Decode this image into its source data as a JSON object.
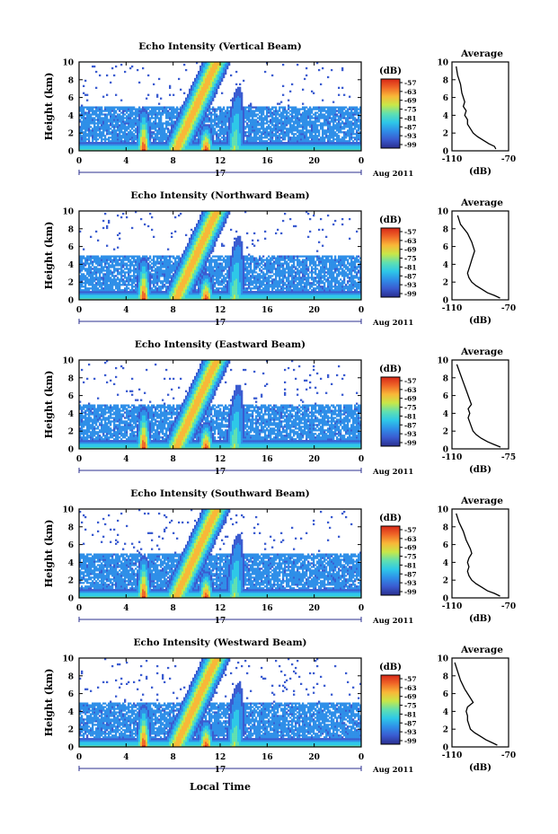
{
  "figure": {
    "xlabel": "Local Time",
    "date_label": "Aug 2011",
    "day_label": "17",
    "time_ticks": [
      "0",
      "4",
      "8",
      "12",
      "16",
      "20",
      "0"
    ],
    "height_ticks": [
      "0",
      "2",
      "4",
      "6",
      "8",
      "10"
    ],
    "ylabel": "Height (km)",
    "colorbar_unit": "(dB)",
    "colorbar_ticks": [
      "-57",
      "-63",
      "-69",
      "-75",
      "-81",
      "-87",
      "-93",
      "-99"
    ],
    "avg_title": "Average",
    "avg_xlabel": "(dB)"
  },
  "chart_data": [
    {
      "type": "heatmap",
      "title": "Echo Intensity (Vertical Beam)",
      "xlabel": "Local Time",
      "ylabel": "Height (km)",
      "xlim": [
        0,
        24
      ],
      "ylim": [
        0,
        10
      ],
      "zlim": [
        -99,
        -57
      ],
      "x_ticks": [
        0,
        4,
        8,
        12,
        16,
        20,
        24
      ],
      "y_ticks": [
        0,
        2,
        4,
        6,
        8,
        10
      ],
      "avg_profile": {
        "xlim": [
          -110,
          -70
        ],
        "x_ticks": [
          "-110",
          "-70"
        ],
        "x": [
          -79,
          -80,
          -84,
          -88,
          -92,
          -95,
          -97,
          -99,
          -99,
          -101,
          -100,
          -102,
          -101,
          -103,
          -104,
          -106,
          -107
        ],
        "y": [
          0.2,
          0.5,
          0.8,
          1.2,
          1.6,
          2.0,
          2.5,
          3.0,
          3.5,
          4.0,
          4.5,
          5.0,
          5.5,
          6.5,
          7.5,
          8.5,
          9.5
        ]
      }
    },
    {
      "type": "heatmap",
      "title": "Echo Intensity (Northward Beam)",
      "xlabel": "Local Time",
      "ylabel": "Height (km)",
      "xlim": [
        0,
        24
      ],
      "ylim": [
        0,
        10
      ],
      "zlim": [
        -99,
        -57
      ],
      "x_ticks": [
        0,
        4,
        8,
        12,
        16,
        20,
        24
      ],
      "y_ticks": [
        0,
        2,
        4,
        6,
        8,
        10
      ],
      "avg_profile": {
        "xlim": [
          -110,
          -70
        ],
        "x_ticks": [
          "-110",
          "-70"
        ],
        "x": [
          -76,
          -80,
          -85,
          -89,
          -93,
          -96,
          -98,
          -99,
          -98,
          -97,
          -96,
          -95,
          -94,
          -96,
          -99,
          -104,
          -106
        ],
        "y": [
          0.2,
          0.5,
          0.8,
          1.2,
          1.6,
          2.0,
          2.5,
          3.0,
          3.5,
          4.0,
          4.5,
          5.0,
          5.5,
          6.5,
          7.5,
          8.5,
          9.5
        ]
      }
    },
    {
      "type": "heatmap",
      "title": "Echo Intensity (Eastward Beam)",
      "xlabel": "Local Time",
      "ylabel": "Height (km)",
      "xlim": [
        0,
        24
      ],
      "ylim": [
        0,
        10
      ],
      "zlim": [
        -99,
        -57
      ],
      "x_ticks": [
        0,
        4,
        8,
        12,
        16,
        20,
        24
      ],
      "y_ticks": [
        0,
        2,
        4,
        6,
        8,
        10
      ],
      "avg_profile": {
        "xlim": [
          -110,
          -75
        ],
        "x_ticks": [
          "-110",
          "-75"
        ],
        "x": [
          -80,
          -84,
          -88,
          -92,
          -95,
          -97,
          -98,
          -99,
          -100,
          -99,
          -100,
          -98,
          -99,
          -101,
          -103,
          -105,
          -107
        ],
        "y": [
          0.2,
          0.5,
          0.8,
          1.2,
          1.6,
          2.0,
          2.5,
          3.0,
          3.5,
          4.0,
          4.5,
          5.0,
          5.5,
          6.5,
          7.5,
          8.5,
          9.5
        ]
      }
    },
    {
      "type": "heatmap",
      "title": "Echo Intensity (Southward Beam)",
      "xlabel": "Local Time",
      "ylabel": "Height (km)",
      "xlim": [
        0,
        24
      ],
      "ylim": [
        0,
        10
      ],
      "zlim": [
        -99,
        -57
      ],
      "x_ticks": [
        0,
        4,
        8,
        12,
        16,
        20,
        24
      ],
      "y_ticks": [
        0,
        2,
        4,
        6,
        8,
        10
      ],
      "avg_profile": {
        "xlim": [
          -110,
          -70
        ],
        "x_ticks": [
          "-110",
          "-70"
        ],
        "x": [
          -76,
          -80,
          -85,
          -89,
          -93,
          -96,
          -98,
          -99,
          -98,
          -99,
          -98,
          -96,
          -97,
          -100,
          -102,
          -105,
          -107
        ],
        "y": [
          0.2,
          0.5,
          0.8,
          1.2,
          1.6,
          2.0,
          2.5,
          3.0,
          3.5,
          4.0,
          4.5,
          5.0,
          5.5,
          6.5,
          7.5,
          8.5,
          9.5
        ]
      }
    },
    {
      "type": "heatmap",
      "title": "Echo Intensity (Westward Beam)",
      "xlabel": "Local Time",
      "ylabel": "Height (km)",
      "xlim": [
        0,
        24
      ],
      "ylim": [
        0,
        10
      ],
      "zlim": [
        -99,
        -57
      ],
      "x_ticks": [
        0,
        4,
        8,
        12,
        16,
        20,
        24
      ],
      "y_ticks": [
        0,
        2,
        4,
        6,
        8,
        10
      ],
      "avg_profile": {
        "xlim": [
          -110,
          -70
        ],
        "x_ticks": [
          "-110",
          "-70"
        ],
        "x": [
          -78,
          -82,
          -86,
          -90,
          -94,
          -97,
          -98,
          -99,
          -99,
          -100,
          -99,
          -95,
          -97,
          -101,
          -104,
          -106,
          -108
        ],
        "y": [
          0.2,
          0.5,
          0.8,
          1.2,
          1.6,
          2.0,
          2.5,
          3.0,
          3.5,
          4.0,
          4.5,
          5.0,
          5.5,
          6.5,
          7.5,
          8.5,
          9.5
        ]
      }
    }
  ],
  "colors": {
    "scale": [
      "#2b2f8f",
      "#3a5bd0",
      "#2f8fe8",
      "#2ec8e8",
      "#60e0b0",
      "#c8e848",
      "#f8b838",
      "#f06828",
      "#d82818"
    ]
  }
}
